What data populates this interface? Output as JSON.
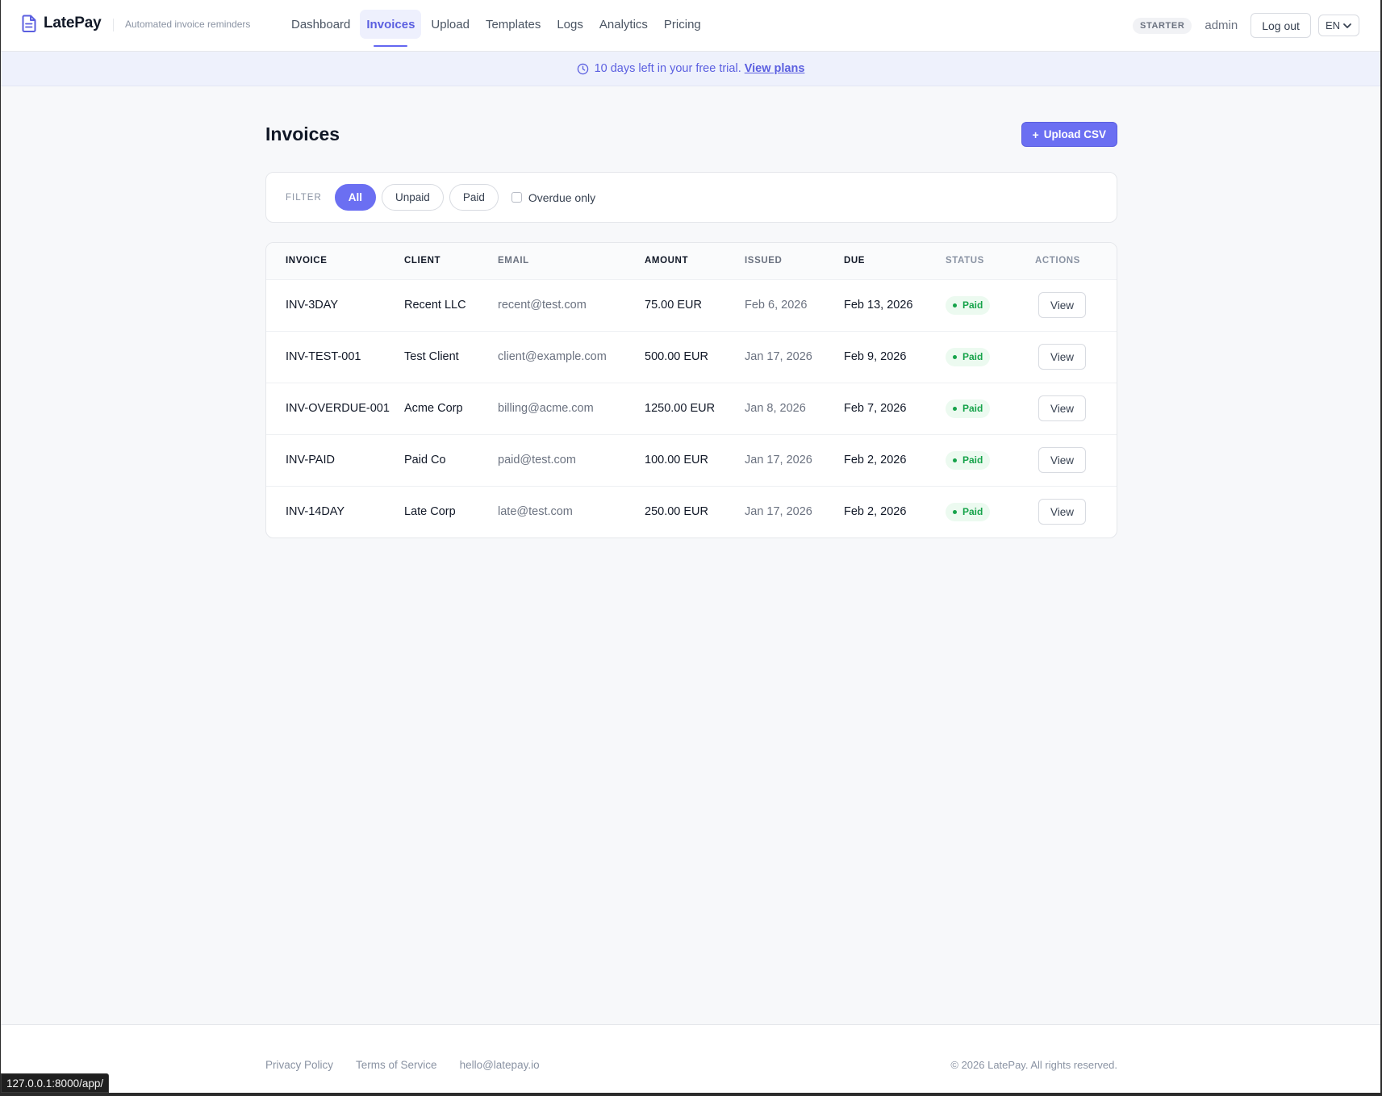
{
  "app": {
    "name": "LatePay",
    "tagline": "Automated invoice reminders",
    "logo_icon": "document-icon",
    "accent_color": "#6366f1"
  },
  "nav": {
    "items": [
      {
        "label": "Dashboard",
        "active": false
      },
      {
        "label": "Invoices",
        "active": true
      },
      {
        "label": "Upload",
        "active": false
      },
      {
        "label": "Templates",
        "active": false
      },
      {
        "label": "Logs",
        "active": false
      },
      {
        "label": "Analytics",
        "active": false
      },
      {
        "label": "Pricing",
        "active": false
      }
    ],
    "plan_badge": "STARTER",
    "username": "admin",
    "logout_label": "Log out",
    "language": "EN"
  },
  "banner": {
    "icon": "clock-icon",
    "text": "10 days left in your free trial.",
    "link_label": "View plans"
  },
  "page": {
    "title": "Invoices",
    "upload_button": {
      "icon": "+",
      "label": "Upload CSV"
    }
  },
  "filter": {
    "label": "FILTER",
    "chips": [
      {
        "label": "All",
        "active": true
      },
      {
        "label": "Unpaid",
        "active": false
      },
      {
        "label": "Paid",
        "active": false
      }
    ],
    "overdue_label": "Overdue only",
    "overdue_checked": false
  },
  "table": {
    "columns": [
      "INVOICE",
      "CLIENT",
      "EMAIL",
      "AMOUNT",
      "ISSUED",
      "DUE",
      "STATUS",
      "ACTIONS"
    ],
    "rows": [
      {
        "invoice": "INV-3DAY",
        "client": "Recent LLC",
        "email": "recent@test.com",
        "amount": "75.00 EUR",
        "issued": "Feb 6, 2026",
        "due": "Feb 13, 2026",
        "status": "Paid",
        "action": "View"
      },
      {
        "invoice": "INV-TEST-001",
        "client": "Test Client",
        "email": "client@example.com",
        "amount": "500.00 EUR",
        "issued": "Jan 17, 2026",
        "due": "Feb 9, 2026",
        "status": "Paid",
        "action": "View"
      },
      {
        "invoice": "INV-OVERDUE-001",
        "client": "Acme Corp",
        "email": "billing@acme.com",
        "amount": "1250.00 EUR",
        "issued": "Jan 8, 2026",
        "due": "Feb 7, 2026",
        "status": "Paid",
        "action": "View"
      },
      {
        "invoice": "INV-PAID",
        "client": "Paid Co",
        "email": "paid@test.com",
        "amount": "100.00 EUR",
        "issued": "Jan 17, 2026",
        "due": "Feb 2, 2026",
        "status": "Paid",
        "action": "View"
      },
      {
        "invoice": "INV-14DAY",
        "client": "Late Corp",
        "email": "late@test.com",
        "amount": "250.00 EUR",
        "issued": "Jan 17, 2026",
        "due": "Feb 2, 2026",
        "status": "Paid",
        "action": "View"
      }
    ],
    "status_color": "#16a34a"
  },
  "footer": {
    "links": [
      "Privacy Policy",
      "Terms of Service",
      "hello@latepay.io"
    ],
    "copyright": "© 2026 LatePay. All rights reserved."
  },
  "browser_status": "127.0.0.1:8000/app/"
}
